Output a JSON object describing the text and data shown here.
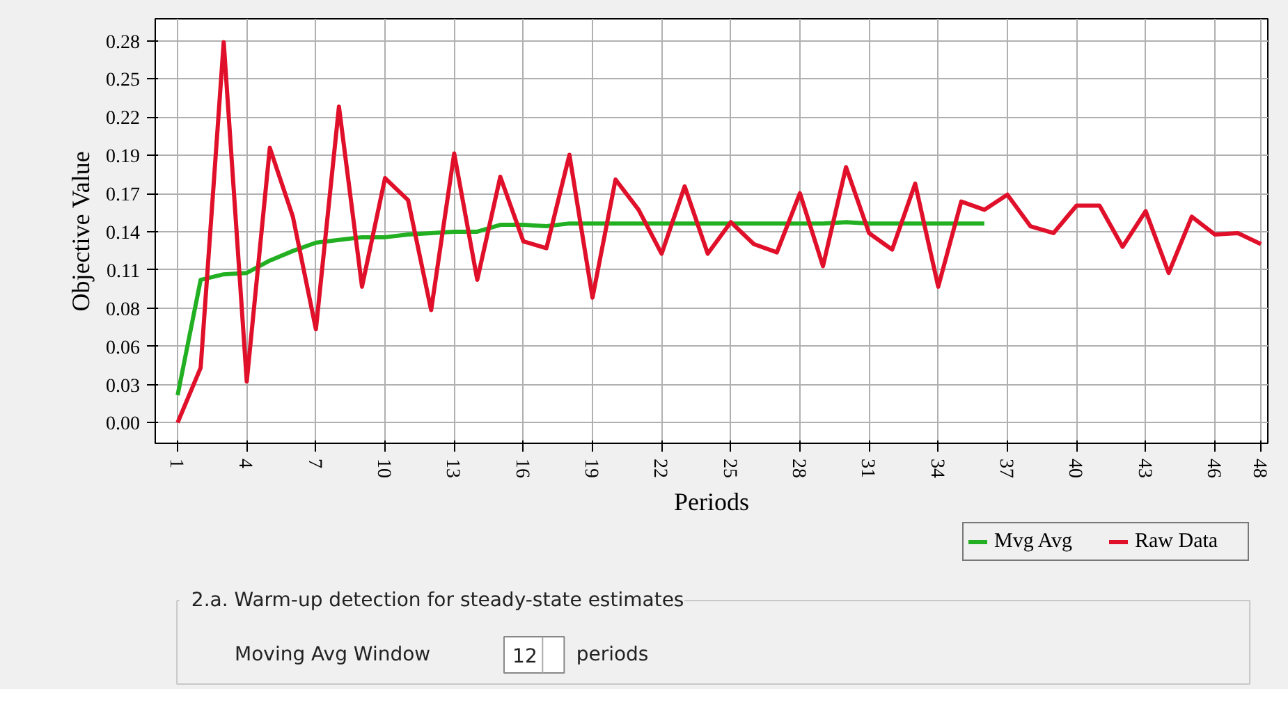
{
  "chart_data": {
    "type": "line",
    "xlabel": "Periods",
    "ylabel": "Objective Value",
    "x": [
      1,
      2,
      3,
      4,
      5,
      6,
      7,
      8,
      9,
      10,
      11,
      12,
      13,
      14,
      15,
      16,
      17,
      18,
      19,
      20,
      21,
      22,
      23,
      24,
      25,
      26,
      27,
      28,
      29,
      30,
      31,
      32,
      33,
      34,
      35,
      36,
      37,
      38,
      39,
      40,
      41,
      42,
      43,
      44,
      45,
      46,
      47,
      48
    ],
    "series": [
      {
        "name": "Mvg Avg",
        "color": "#22b022",
        "x": [
          1,
          2,
          3,
          4,
          5,
          6,
          7,
          8,
          9,
          10,
          11,
          12,
          13,
          14,
          15,
          16,
          17,
          18,
          19,
          20,
          21,
          22,
          23,
          24,
          25,
          26,
          27,
          28,
          29,
          30,
          31,
          32,
          33,
          34,
          35,
          36
        ],
        "values": [
          0.02,
          0.104,
          0.108,
          0.109,
          0.118,
          0.125,
          0.131,
          0.133,
          0.135,
          0.135,
          0.137,
          0.138,
          0.139,
          0.139,
          0.144,
          0.144,
          0.143,
          0.145,
          0.145,
          0.145,
          0.145,
          0.145,
          0.145,
          0.145,
          0.145,
          0.145,
          0.145,
          0.145,
          0.145,
          0.146,
          0.145,
          0.145,
          0.145,
          0.145,
          0.145,
          0.145
        ]
      },
      {
        "name": "Raw Data",
        "color": "#e0102a",
        "values": [
          0.0,
          0.04,
          0.277,
          0.03,
          0.2,
          0.15,
          0.068,
          0.23,
          0.099,
          0.178,
          0.162,
          0.082,
          0.196,
          0.104,
          0.179,
          0.132,
          0.127,
          0.195,
          0.091,
          0.177,
          0.155,
          0.123,
          0.172,
          0.123,
          0.146,
          0.13,
          0.124,
          0.167,
          0.114,
          0.186,
          0.138,
          0.126,
          0.174,
          0.099,
          0.161,
          0.155,
          0.166,
          0.143,
          0.138,
          0.158,
          0.158,
          0.128,
          0.154,
          0.109,
          0.15,
          0.137,
          0.138,
          0.13
        ]
      }
    ],
    "xlim": [
      0.03,
      48.3
    ],
    "xticks": [
      1,
      4,
      7,
      10,
      13,
      16,
      19,
      22,
      25,
      28,
      31,
      34,
      37,
      40,
      43,
      46,
      48
    ],
    "ylim": [
      -0.015,
      0.294
    ],
    "yticks": [
      {
        "value": 0,
        "label": "0.00"
      },
      {
        "value": 0.0278,
        "label": "0.03"
      },
      {
        "value": 0.0556,
        "label": "0.06"
      },
      {
        "value": 0.0834,
        "label": "0.08"
      },
      {
        "value": 0.1112,
        "label": "0.11"
      },
      {
        "value": 0.139,
        "label": "0.14"
      },
      {
        "value": 0.1668,
        "label": "0.17"
      },
      {
        "value": 0.1946,
        "label": "0.19"
      },
      {
        "value": 0.2224,
        "label": "0.22"
      },
      {
        "value": 0.2502,
        "label": "0.25"
      },
      {
        "value": 0.278,
        "label": "0.28"
      }
    ],
    "grid": true,
    "legend": "bottom right",
    "line_style": "solid",
    "marker": "none",
    "annotations": [
      "2.a. Warm-up detection for steady-state estimates",
      "Moving Avg Window",
      "12",
      "periods"
    ]
  }
}
